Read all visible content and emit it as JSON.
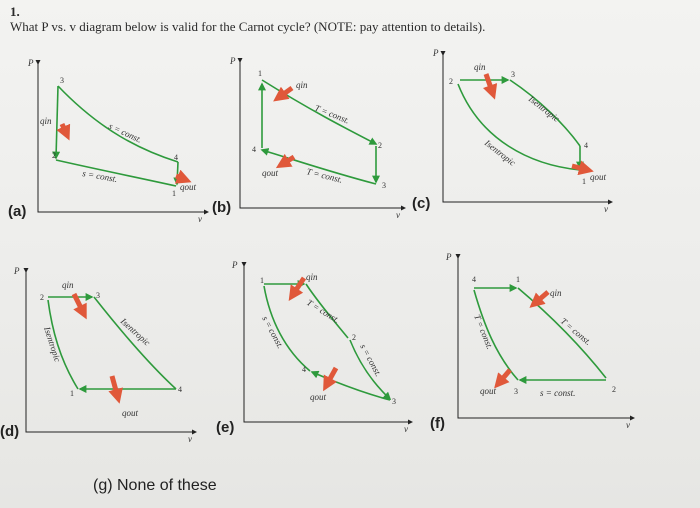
{
  "question": {
    "number": "1.",
    "text": "What P vs. v diagram below is valid for the Carnot cycle? (NOTE: pay attention to details)."
  },
  "axes": {
    "p": "P",
    "v": "v"
  },
  "diagrams": {
    "a": {
      "letter": "(a)",
      "qin": "qin",
      "qout": "qout",
      "top_curve": "s = const.",
      "bottom_curve": "s = const.",
      "points": [
        "1",
        "2",
        "3",
        "4"
      ]
    },
    "b": {
      "letter": "(b)",
      "qin": "qin",
      "qout": "qout",
      "top_curve": "T = const.",
      "bottom_curve": "T = const.",
      "points": [
        "1",
        "2",
        "3",
        "4"
      ]
    },
    "c": {
      "letter": "(c)",
      "qin": "qin",
      "qout": "qout",
      "top_curve": "Isentropic",
      "bottom_curve": "Isentropic",
      "points": [
        "1",
        "2",
        "3",
        "4"
      ]
    },
    "d": {
      "letter": "(d)",
      "qin": "qin",
      "qout": "qout",
      "left_curve": "Isentropic",
      "right_curve": "Isentropic",
      "points": [
        "1",
        "2",
        "3",
        "4"
      ]
    },
    "e": {
      "letter": "(e)",
      "qin": "qin",
      "qout": "qout",
      "left_curve": "s = const.",
      "middle_curve": "T = const.",
      "right_curve": "s = const.",
      "points": [
        "1",
        "2",
        "3",
        "4"
      ]
    },
    "f": {
      "letter": "(f)",
      "qin": "qin",
      "qout": "qout",
      "left_curve": "T = const.",
      "right_curve": "T = const.",
      "bottom_curve": "s = const.",
      "points": [
        "1",
        "2",
        "3",
        "4"
      ]
    }
  },
  "option_g": "(g) None of these",
  "colors": {
    "curve": "#2e9a3c",
    "heat_arrow": "#e0583a",
    "axis": "#222222"
  }
}
